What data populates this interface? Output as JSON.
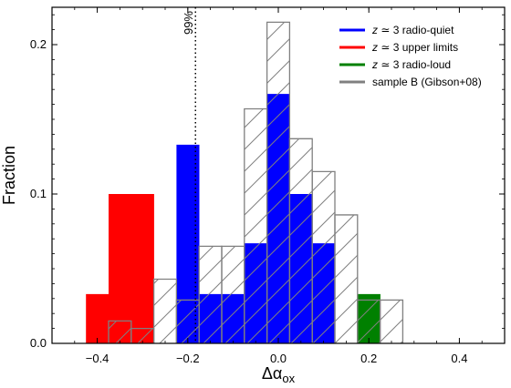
{
  "chart_data": {
    "type": "bar",
    "xlabel": "Δα_ox",
    "ylabel": "Fraction",
    "xlim": [
      -0.5,
      0.5
    ],
    "ylim": [
      0,
      0.225
    ],
    "xticks": [
      -0.4,
      -0.2,
      0.0,
      0.2,
      0.4
    ],
    "xtick_labels": [
      "−0.4",
      "−0.2",
      "0.0",
      "0.2",
      "0.4"
    ],
    "yticks": [
      0.0,
      0.1,
      0.2
    ],
    "ytick_labels": [
      "0.0",
      "0.1",
      "0.2"
    ],
    "bin_width": 0.05,
    "grid": false,
    "legend_position": "top-right",
    "series": [
      {
        "name": "z ≃ 3 radio-quiet",
        "name_parts": [
          "z",
          " ≃ 3 radio-quiet"
        ],
        "color": "#0000ff",
        "style": "filled",
        "x_left": [
          -0.375,
          -0.325,
          -0.225,
          -0.175,
          -0.125,
          -0.075,
          -0.025,
          0.025,
          0.075
        ],
        "values": [
          0.067,
          0.033,
          0.133,
          0.033,
          0.033,
          0.067,
          0.167,
          0.1,
          0.067
        ]
      },
      {
        "name": "z ≃ 3 upper limits",
        "name_parts": [
          "z",
          " ≃ 3 upper limits"
        ],
        "color": "#ff0000",
        "style": "filled",
        "x_left": [
          -0.425,
          -0.375,
          -0.325
        ],
        "values": [
          0.033,
          0.1,
          0.1
        ]
      },
      {
        "name": "z ≃ 3 radio-loud",
        "name_parts": [
          "z",
          " ≃ 3 radio-loud"
        ],
        "color": "#008000",
        "style": "filled",
        "x_left": [
          0.175
        ],
        "values": [
          0.033
        ]
      },
      {
        "name": "sample B (Gibson+08)",
        "name_parts": [
          "",
          "sample B (Gibson+08)"
        ],
        "color": "#808080",
        "style": "hatched",
        "x_left": [
          -0.375,
          -0.325,
          -0.275,
          -0.225,
          -0.175,
          -0.125,
          -0.075,
          -0.025,
          0.025,
          0.075,
          0.125,
          0.175,
          0.225
        ],
        "values": [
          0.015,
          0.01,
          0.043,
          0.029,
          0.065,
          0.065,
          0.157,
          0.215,
          0.137,
          0.115,
          0.086,
          0.029,
          0.029
        ]
      }
    ],
    "annotations": [
      {
        "text": "99%",
        "x": -0.183,
        "line_style": "dotted",
        "orientation": "vertical"
      }
    ]
  }
}
